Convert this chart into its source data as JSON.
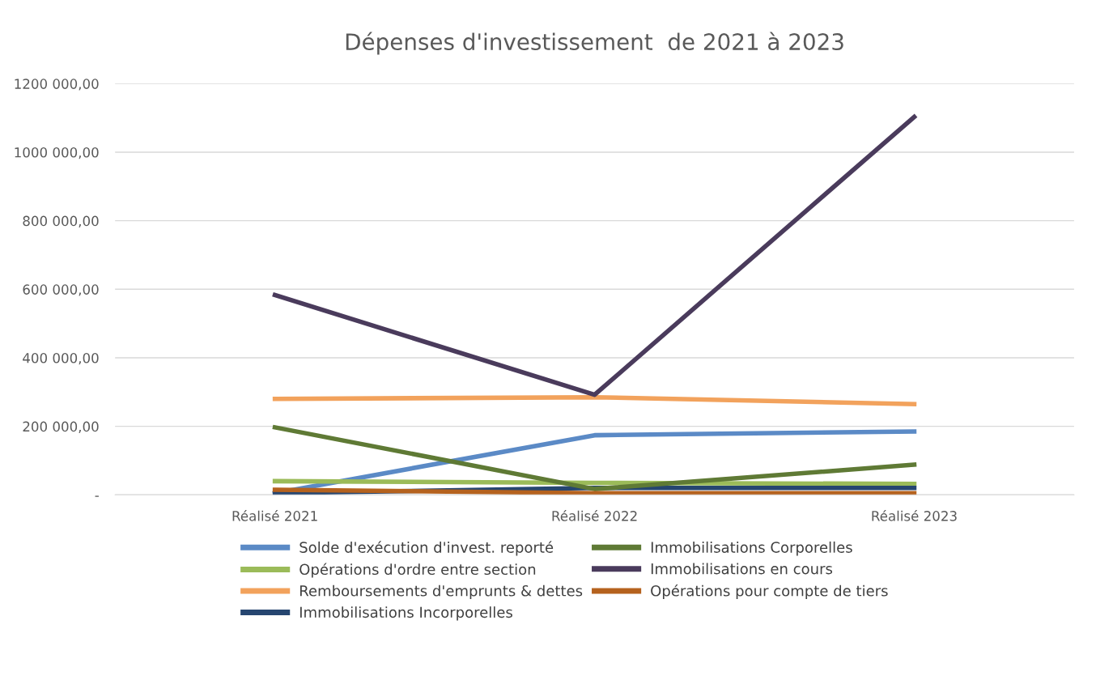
{
  "chart_data": {
    "type": "line",
    "title": "Dépenses d'investissement  de 2021 à 2023",
    "categories": [
      "Réalisé 2021",
      "Réalisé 2022",
      "Réalisé 2023"
    ],
    "series": [
      {
        "name": "Solde d'exécution d'invest. reporté",
        "color": "#5b8ac6",
        "values": [
          5000,
          174000,
          185000
        ]
      },
      {
        "name": "Opérations d'ordre entre section",
        "color": "#9bbb59",
        "values": [
          40000,
          35000,
          32000
        ]
      },
      {
        "name": "Remboursements d'emprunts & dettes",
        "color": "#f2a25c",
        "values": [
          280000,
          285000,
          265000
        ]
      },
      {
        "name": "Immobilisations Incorporelles",
        "color": "#264670",
        "values": [
          5000,
          20000,
          20000
        ]
      },
      {
        "name": "Immobilisations Corporelles",
        "color": "#5f7a35",
        "values": [
          197000,
          17000,
          88000
        ]
      },
      {
        "name": "Immobilisations en cours",
        "color": "#4a3b5c",
        "values": [
          583000,
          292000,
          1103000
        ]
      },
      {
        "name": "Opérations pour compte de tiers",
        "color": "#b5621e",
        "values": [
          15000,
          5000,
          5000
        ]
      }
    ],
    "ylim": [
      0,
      1200000
    ],
    "yticks": [
      {
        "value": 0,
        "label": "-"
      },
      {
        "value": 200000,
        "label": "200 000,00"
      },
      {
        "value": 400000,
        "label": "400 000,00"
      },
      {
        "value": 600000,
        "label": "600 000,00"
      },
      {
        "value": 800000,
        "label": "800 000,00"
      },
      {
        "value": 1000000,
        "label": "1000 000,00"
      },
      {
        "value": 1200000,
        "label": "1200 000,00"
      }
    ],
    "grid": "y",
    "legend": "bottom",
    "marker": "none",
    "line_style": "solid"
  }
}
